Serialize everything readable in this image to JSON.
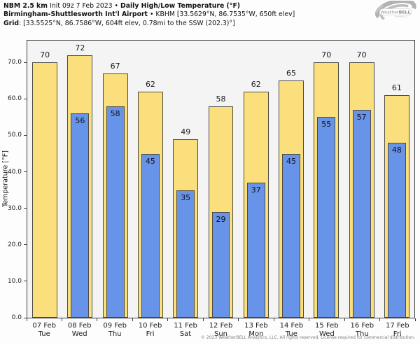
{
  "header": {
    "lines": [
      [
        {
          "t": "NBM 2.5 km ",
          "b": true
        },
        {
          "t": "Init 09z 7 Feb 2023 • ",
          "b": false
        },
        {
          "t": "Daily High/Low Temperature (°F)",
          "b": true
        }
      ],
      [
        {
          "t": "Birmingham-Shuttlesworth Int'l Airport",
          "b": true
        },
        {
          "t": " • KBHM [33.5629°N, 86.7535°W, 650ft elev]",
          "b": false
        }
      ],
      [
        {
          "t": "Grid",
          "b": true
        },
        {
          "t": ": [33.5525°N, 86.7586°W, 604ft elev, 0.78mi to the SSW (202.3)°]",
          "b": false
        }
      ]
    ]
  },
  "logo": {
    "text_weather": "Weather",
    "text_bell": "BELL",
    "subtext": "Analytics LLC"
  },
  "chart_data": {
    "type": "bar",
    "title": "Daily High/Low Temperature (°F)",
    "xlabel": "",
    "ylabel": "Temperature [°F]",
    "ylim": [
      0,
      76
    ],
    "yticks": [
      0,
      10,
      20,
      30,
      40,
      50,
      60,
      70
    ],
    "grid": false,
    "legend": "none",
    "plot_bg": "#f4f4f4",
    "bar_edge": "#4c4c42",
    "categories": [
      {
        "date": "07 Feb",
        "weekday": "Tue"
      },
      {
        "date": "08 Feb",
        "weekday": "Wed"
      },
      {
        "date": "09 Feb",
        "weekday": "Thu"
      },
      {
        "date": "10 Feb",
        "weekday": "Fri"
      },
      {
        "date": "11 Feb",
        "weekday": "Sat"
      },
      {
        "date": "12 Feb",
        "weekday": "Sun"
      },
      {
        "date": "13 Feb",
        "weekday": "Mon"
      },
      {
        "date": "14 Feb",
        "weekday": "Tue"
      },
      {
        "date": "15 Feb",
        "weekday": "Wed"
      },
      {
        "date": "16 Feb",
        "weekday": "Thu"
      },
      {
        "date": "17 Feb",
        "weekday": "Fri"
      }
    ],
    "series": [
      {
        "name": "High",
        "color": "#fbdf7c",
        "values": [
          70,
          72,
          67,
          62,
          49,
          58,
          62,
          65,
          70,
          70,
          61
        ]
      },
      {
        "name": "Low",
        "color": "#6793e8",
        "values": [
          null,
          56,
          58,
          45,
          35,
          29,
          37,
          45,
          55,
          57,
          48
        ]
      }
    ]
  },
  "footer": {
    "copyright": "© 2023 WeatherBELL Analytics, LLC. All rights reserved. License required for commercial distribution."
  }
}
